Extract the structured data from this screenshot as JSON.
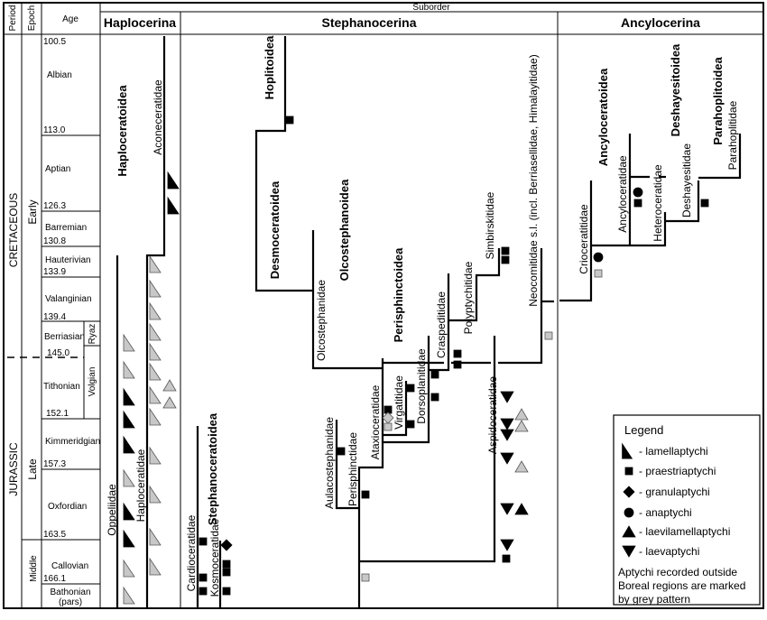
{
  "header": {
    "period": "Period",
    "epoch": "Epoch",
    "age": "Age",
    "suborder": "Suborder"
  },
  "periods": [
    "CRETACEOUS",
    "JURASSIC"
  ],
  "epochs": [
    "Early",
    "Late",
    "Middle"
  ],
  "ages": {
    "names": [
      "Albian",
      "Aptian",
      "Barremian",
      "Hauterivian",
      "Valanginian",
      "Berriasian",
      "Tithonian",
      "Kimmeridgian",
      "Oxfordian",
      "Callovian",
      "Bathonian",
      "(pars)"
    ],
    "boundaries": [
      "100.5",
      "113.0",
      "126.3",
      "130.8",
      "133.9",
      "139.4",
      "145.0",
      "152.1",
      "157.3",
      "163.5",
      "166.1"
    ]
  },
  "substages": [
    "Ryaz",
    "Volgian"
  ],
  "suborders": [
    "Haplocerina",
    "Stephanocerina",
    "Ancylocerina"
  ],
  "superfamilies": [
    "Haploceratoidea",
    "Stephanoceratoidea",
    "Hoplitoidea",
    "Desmoceratoidea",
    "Olcostephanoidea",
    "Perisphinctoidea",
    "Ancyloceratoidea",
    "Deshayesitoidea",
    "Parahoplitoidea"
  ],
  "families": {
    "aconeceratidae": "Aconeceratidae",
    "oppeliidae": "Oppeliidae",
    "haploceratidae": "Haploceratidae",
    "cardioceratidae": "Cardioceratidae",
    "kosmoceratidae": "Kosmoceratidae",
    "olcostephanidae": "Olcostephanidae",
    "aulacostephanidae": "Aulacostephanidae",
    "perisphinctidae": "Perisphinctidae",
    "ataxioceratidae": "Ataxioceratidae",
    "virgatitidae": "Virgatitidae",
    "dorsoplanitidae": "Dorsoplanitidae",
    "craspeditidae": "Craspeditidae",
    "polyptychitidae": "Polyptychitidae",
    "simbirskitidae": "Simbirskitidae",
    "aspidoceratidae": "Aspidoceratidae",
    "neocomitidae": "Neocomitidae s.l. (incl. Berriasellidae, Himalayitidae)",
    "crioceratitidae": "Crioceratitidae",
    "ancyloceratidae": "Ancyloceratidae",
    "heteroceratidae": "Heteroceratidae",
    "deshayesitidae": "Deshayesitidae",
    "parahoplitidae": "Parahoplitidae"
  },
  "legend": {
    "title": "Legend",
    "items": [
      "- lamellaptychi",
      "- praestriaptychi",
      "- granulaptychi",
      "- anaptychi",
      "- laevilamellaptychi",
      "- laevaptychi"
    ],
    "note": [
      "Aptychi recorded outside",
      "Boreal regions are marked",
      "by grey pattern"
    ]
  },
  "colors": {
    "black": "#000000",
    "grey": "#c8c8c8"
  }
}
